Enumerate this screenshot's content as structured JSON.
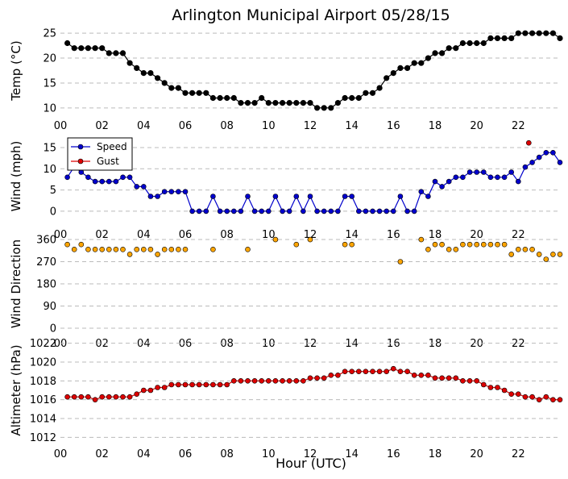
{
  "title": "Arlington Municipal Airport 05/28/15",
  "xlabel": "Hour (UTC)",
  "x_ticks": [
    "00",
    "02",
    "04",
    "06",
    "08",
    "10",
    "12",
    "14",
    "16",
    "18",
    "20",
    "22"
  ],
  "chart_data": [
    {
      "type": "line",
      "ylabel": "Temp (°C)",
      "ylim": [
        9,
        26
      ],
      "yticks": [
        10,
        15,
        20,
        25
      ],
      "grid": "horizontal dashed",
      "xlim": [
        0,
        24
      ],
      "series": [
        {
          "color": "#000000",
          "x": [
            0.333,
            0.667,
            1.0,
            1.333,
            1.667,
            2.0,
            2.333,
            2.667,
            3.0,
            3.333,
            3.667,
            4.0,
            4.333,
            4.667,
            5.0,
            5.333,
            5.667,
            6.0,
            6.333,
            6.667,
            7.0,
            7.333,
            7.667,
            8.0,
            8.333,
            8.667,
            9.0,
            9.333,
            9.667,
            10.0,
            10.333,
            10.667,
            11.0,
            11.333,
            11.667,
            12.0,
            12.333,
            12.667,
            13.0,
            13.333,
            13.667,
            14.0,
            14.333,
            14.667,
            15.0,
            15.333,
            15.667,
            16.0,
            16.333,
            16.667,
            17.0,
            17.333,
            17.667,
            18.0,
            18.333,
            18.667,
            19.0,
            19.333,
            19.667,
            20.0,
            20.333,
            20.667,
            21.0,
            21.333,
            21.667,
            22.0,
            22.333,
            22.667,
            23.0,
            23.333,
            23.667,
            24.0
          ],
          "y": [
            23,
            22,
            22,
            22,
            22,
            22,
            21,
            21,
            21,
            19,
            18,
            17,
            17,
            16,
            15,
            14,
            14,
            13,
            13,
            13,
            13,
            12,
            12,
            12,
            12,
            11,
            11,
            11,
            12,
            11,
            11,
            11,
            11,
            11,
            11,
            11,
            10,
            10,
            10,
            11,
            12,
            12,
            12,
            13,
            13,
            14,
            16,
            17,
            18,
            18,
            19,
            19,
            20,
            21,
            21,
            22,
            22,
            23,
            23,
            23,
            23,
            24,
            24,
            24,
            24,
            25,
            25,
            25,
            25,
            25,
            25,
            24
          ]
        }
      ]
    },
    {
      "type": "line",
      "ylabel": "Wind (mph)",
      "ylim": [
        -2.5,
        19
      ],
      "yticks": [
        0,
        5,
        10,
        15
      ],
      "grid": "horizontal dashed",
      "xlim": [
        0,
        24
      ],
      "legend": "top-left",
      "series": [
        {
          "name": "Speed",
          "color": "#0000cc",
          "x": [
            0.333,
            0.667,
            1.0,
            1.333,
            1.667,
            2.0,
            2.333,
            2.667,
            3.0,
            3.333,
            3.667,
            4.0,
            4.333,
            4.667,
            5.0,
            5.333,
            5.667,
            6.0,
            6.333,
            6.667,
            7.0,
            7.333,
            7.667,
            8.0,
            8.333,
            8.667,
            9.0,
            9.333,
            9.667,
            10.0,
            10.333,
            10.667,
            11.0,
            11.333,
            11.667,
            12.0,
            12.333,
            12.667,
            13.0,
            13.333,
            13.667,
            14.0,
            14.333,
            14.667,
            15.0,
            15.333,
            15.667,
            16.0,
            16.333,
            16.667,
            17.0,
            17.333,
            17.667,
            18.0,
            18.333,
            18.667,
            19.0,
            19.333,
            19.667,
            20.0,
            20.333,
            20.667,
            21.0,
            21.333,
            21.667,
            22.0,
            22.333,
            22.667,
            23.0,
            23.333,
            23.667,
            24.0
          ],
          "y": [
            8,
            10.5,
            9.2,
            8,
            7,
            7,
            7,
            7,
            8,
            8,
            5.8,
            5.8,
            3.5,
            3.5,
            4.6,
            4.6,
            4.6,
            4.6,
            0,
            0,
            0,
            3.5,
            0,
            0,
            0,
            0,
            3.5,
            0,
            0,
            0,
            3.5,
            0,
            0,
            3.5,
            0,
            3.5,
            0,
            0,
            0,
            0,
            3.5,
            3.5,
            0,
            0,
            0,
            0,
            0,
            0,
            3.5,
            0,
            0,
            4.6,
            3.5,
            7,
            5.8,
            7,
            8,
            8,
            9.2,
            9.2,
            9.2,
            8,
            8,
            8,
            9.2,
            7,
            10.4,
            11.5,
            12.7,
            13.8,
            13.8,
            11.5
          ]
        },
        {
          "name": "Gust",
          "color": "#dd0000",
          "x": [
            22.5
          ],
          "y": [
            16.1
          ]
        }
      ]
    },
    {
      "type": "scatter",
      "ylabel": "Wind Direction",
      "ylim": [
        -10,
        370
      ],
      "yticks": [
        0,
        90,
        180,
        270,
        360
      ],
      "grid": "horizontal dashed",
      "xlim": [
        0,
        24
      ],
      "series": [
        {
          "color": "#ffa500",
          "x": [
            0.333,
            0.667,
            1.0,
            1.333,
            1.667,
            2.0,
            2.333,
            2.667,
            3.0,
            3.333,
            3.667,
            4.0,
            4.333,
            4.667,
            5.0,
            5.333,
            5.667,
            6.0,
            7.333,
            9.0,
            10.333,
            11.333,
            12.0,
            13.667,
            14.0,
            16.333,
            17.333,
            17.667,
            18.0,
            18.333,
            18.667,
            19.0,
            19.333,
            19.667,
            20.0,
            20.333,
            20.667,
            21.0,
            21.333,
            21.667,
            22.0,
            22.333,
            22.667,
            23.0,
            23.333,
            23.667,
            24.0
          ],
          "y": [
            340,
            320,
            340,
            320,
            320,
            320,
            320,
            320,
            320,
            300,
            320,
            320,
            320,
            300,
            320,
            320,
            320,
            320,
            320,
            320,
            360,
            340,
            360,
            340,
            340,
            270,
            360,
            320,
            340,
            340,
            320,
            320,
            340,
            340,
            340,
            340,
            340,
            340,
            340,
            300,
            320,
            320,
            320,
            300,
            280,
            300,
            300
          ]
        }
      ]
    },
    {
      "type": "line",
      "ylabel": "Altimeter (hPa)",
      "ylim": [
        1011.6,
        1022.4
      ],
      "yticks": [
        1012,
        1014,
        1016,
        1018,
        1020,
        1022
      ],
      "grid": "horizontal dashed",
      "xlim": [
        0,
        24
      ],
      "series": [
        {
          "color": "#dd0000",
          "x": [
            0.333,
            0.667,
            1.0,
            1.333,
            1.667,
            2.0,
            2.333,
            2.667,
            3.0,
            3.333,
            3.667,
            4.0,
            4.333,
            4.667,
            5.0,
            5.333,
            5.667,
            6.0,
            6.333,
            6.667,
            7.0,
            7.333,
            7.667,
            8.0,
            8.333,
            8.667,
            9.0,
            9.333,
            9.667,
            10.0,
            10.333,
            10.667,
            11.0,
            11.333,
            11.667,
            12.0,
            12.333,
            12.667,
            13.0,
            13.333,
            13.667,
            14.0,
            14.333,
            14.667,
            15.0,
            15.333,
            15.667,
            16.0,
            16.333,
            16.667,
            17.0,
            17.333,
            17.667,
            18.0,
            18.333,
            18.667,
            19.0,
            19.333,
            19.667,
            20.0,
            20.333,
            20.667,
            21.0,
            21.333,
            21.667,
            22.0,
            22.333,
            22.667,
            23.0,
            23.333,
            23.667,
            24.0
          ],
          "y": [
            1016.3,
            1016.3,
            1016.3,
            1016.3,
            1016.0,
            1016.3,
            1016.3,
            1016.3,
            1016.3,
            1016.3,
            1016.6,
            1017.0,
            1017.0,
            1017.3,
            1017.3,
            1017.6,
            1017.6,
            1017.6,
            1017.6,
            1017.6,
            1017.6,
            1017.6,
            1017.6,
            1017.6,
            1018.0,
            1018.0,
            1018.0,
            1018.0,
            1018.0,
            1018.0,
            1018.0,
            1018.0,
            1018.0,
            1018.0,
            1018.0,
            1018.3,
            1018.3,
            1018.3,
            1018.6,
            1018.6,
            1019.0,
            1019.0,
            1019.0,
            1019.0,
            1019.0,
            1019.0,
            1019.0,
            1019.3,
            1019.0,
            1019.0,
            1018.6,
            1018.6,
            1018.6,
            1018.3,
            1018.3,
            1018.3,
            1018.3,
            1018.0,
            1018.0,
            1018.0,
            1017.6,
            1017.3,
            1017.3,
            1017.0,
            1016.6,
            1016.6,
            1016.3,
            1016.3,
            1016.0,
            1016.3,
            1016.0,
            1016.0
          ]
        }
      ]
    }
  ]
}
